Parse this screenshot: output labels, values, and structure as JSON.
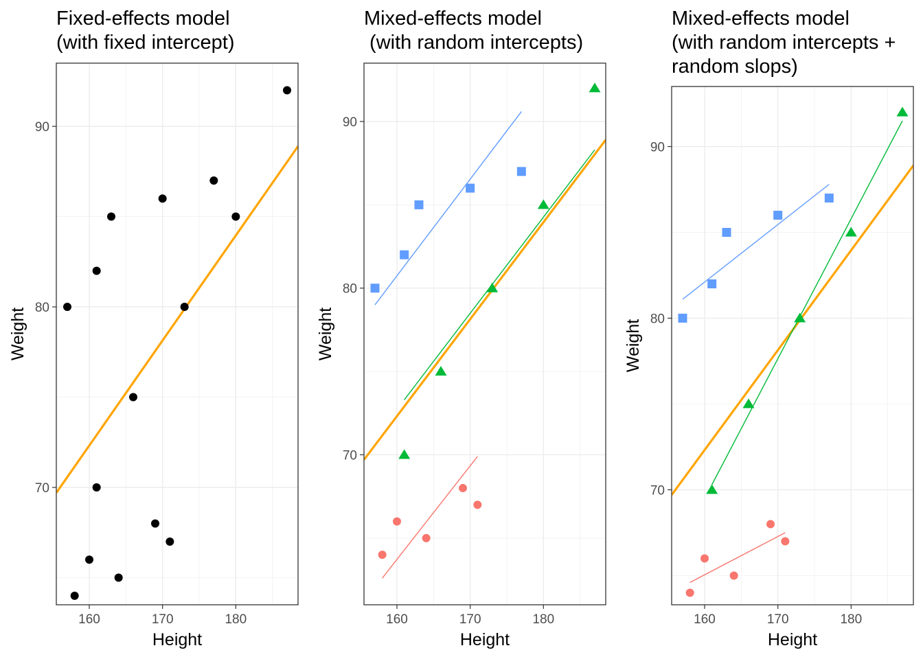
{
  "colors": {
    "fixed_line": "#FFA500",
    "points_black": "#000000",
    "group_red": "#F8766D",
    "group_green": "#00BA38",
    "group_blue": "#619CFF",
    "grid": "#EBEBEB",
    "border": "#333333",
    "tick_text": "#4D4D4D"
  },
  "chart_data": [
    {
      "type": "scatter",
      "title": [
        "Fixed-effects model",
        "(with fixed intercept)"
      ],
      "xlabel": "Height",
      "ylabel": "Weight",
      "xlim": [
        155.5,
        188.5
      ],
      "ylim": [
        63.5,
        93.5
      ],
      "x_ticks": [
        160,
        170,
        180
      ],
      "y_ticks": [
        70,
        80,
        90
      ],
      "grid": true,
      "legend": "none",
      "series": [
        {
          "marker": "circle",
          "color": "#000000",
          "x": [
            157,
            158,
            160,
            161,
            161,
            163,
            164,
            166,
            169,
            170,
            171,
            173,
            177,
            180,
            187
          ],
          "y": [
            80,
            64,
            66,
            82,
            70,
            85,
            65,
            75,
            68,
            86,
            67,
            80,
            87,
            85,
            92
          ]
        }
      ],
      "lines": [
        {
          "color": "#FFA500",
          "width": "thick",
          "x": [
            155.5,
            188.5
          ],
          "y": [
            69.7,
            88.9
          ]
        }
      ]
    },
    {
      "type": "scatter",
      "title": [
        "Mixed-effects model",
        " (with random intercepts)"
      ],
      "xlabel": "Height",
      "ylabel": "Weight",
      "xlim": [
        155.5,
        188.5
      ],
      "ylim": [
        61,
        93.5
      ],
      "x_ticks": [
        160,
        170,
        180
      ],
      "y_ticks": [
        70,
        80,
        90
      ],
      "grid": true,
      "legend": "none",
      "series": [
        {
          "marker": "square",
          "color": "#619CFF",
          "x": [
            157,
            161,
            163,
            170,
            177
          ],
          "y": [
            80,
            82,
            85,
            86,
            87
          ]
        },
        {
          "marker": "triangle",
          "color": "#00BA38",
          "x": [
            161,
            166,
            173,
            180,
            187
          ],
          "y": [
            70,
            75,
            80,
            85,
            92
          ]
        },
        {
          "marker": "circle",
          "color": "#F8766D",
          "x": [
            158,
            160,
            164,
            169,
            171
          ],
          "y": [
            64,
            66,
            65,
            68,
            67
          ]
        }
      ],
      "lines": [
        {
          "color": "#FFA500",
          "width": "thick",
          "x": [
            155.5,
            188.5
          ],
          "y": [
            69.7,
            88.9
          ]
        },
        {
          "color": "#619CFF",
          "width": "thin",
          "x": [
            157,
            177
          ],
          "y": [
            79.0,
            90.6
          ]
        },
        {
          "color": "#00BA38",
          "width": "thin",
          "x": [
            161,
            187
          ],
          "y": [
            73.3,
            88.3
          ]
        },
        {
          "color": "#F8766D",
          "width": "thin",
          "x": [
            158,
            171
          ],
          "y": [
            62.6,
            69.9
          ]
        }
      ]
    },
    {
      "type": "scatter",
      "title": [
        "Mixed-effects model",
        "(with random intercepts +",
        "random slops)"
      ],
      "xlabel": "Height",
      "ylabel": "Weight",
      "xlim": [
        155.5,
        188.5
      ],
      "ylim": [
        63.3,
        93.5
      ],
      "x_ticks": [
        160,
        170,
        180
      ],
      "y_ticks": [
        70,
        80,
        90
      ],
      "grid": true,
      "legend": "none",
      "series": [
        {
          "marker": "square",
          "color": "#619CFF",
          "x": [
            157,
            161,
            163,
            170,
            177
          ],
          "y": [
            80,
            82,
            85,
            86,
            87
          ]
        },
        {
          "marker": "triangle",
          "color": "#00BA38",
          "x": [
            161,
            166,
            173,
            180,
            187
          ],
          "y": [
            70,
            75,
            80,
            85,
            92
          ]
        },
        {
          "marker": "circle",
          "color": "#F8766D",
          "x": [
            158,
            160,
            164,
            169,
            171
          ],
          "y": [
            64,
            66,
            65,
            68,
            67
          ]
        }
      ],
      "lines": [
        {
          "color": "#FFA500",
          "width": "thick",
          "x": [
            155.5,
            188.5
          ],
          "y": [
            69.7,
            88.9
          ]
        },
        {
          "color": "#619CFF",
          "width": "thin",
          "x": [
            157,
            177
          ],
          "y": [
            81.1,
            87.8
          ]
        },
        {
          "color": "#00BA38",
          "width": "thin",
          "x": [
            161,
            187
          ],
          "y": [
            70.3,
            91.5
          ]
        },
        {
          "color": "#F8766D",
          "width": "thin",
          "x": [
            158,
            171
          ],
          "y": [
            64.6,
            67.5
          ]
        }
      ]
    }
  ]
}
